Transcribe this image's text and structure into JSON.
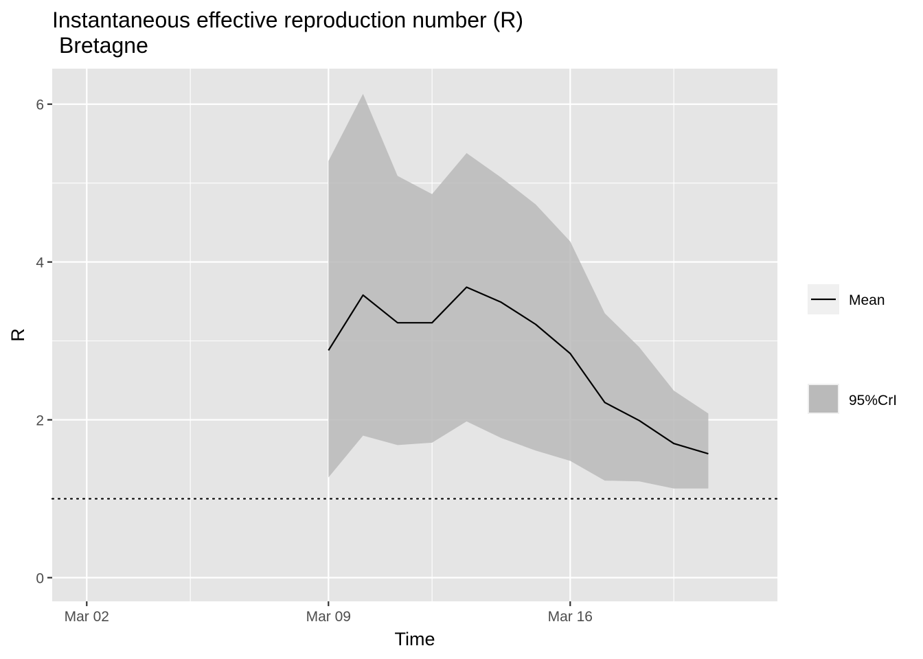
{
  "chart_data": {
    "type": "line",
    "title": "Instantaneous effective reproduction number (R)",
    "subtitle": "Bretagne",
    "xlabel": "Time",
    "ylabel": "R",
    "x_tick_labels": [
      "Mar 02",
      "Mar 09",
      "Mar 16"
    ],
    "y_tick_labels": [
      "0",
      "2",
      "4",
      "6"
    ],
    "ylim": [
      -0.3,
      6.45
    ],
    "xlim": [
      "2020-03-01",
      "2020-03-22"
    ],
    "x": [
      "2020-03-09",
      "2020-03-10",
      "2020-03-11",
      "2020-03-12",
      "2020-03-13",
      "2020-03-14",
      "2020-03-15",
      "2020-03-16",
      "2020-03-17",
      "2020-03-18",
      "2020-03-19",
      "2020-03-20"
    ],
    "series": [
      {
        "name": "Mean",
        "values": [
          2.88,
          3.58,
          3.23,
          3.23,
          3.68,
          3.49,
          3.21,
          2.84,
          2.22,
          1.99,
          1.7,
          1.57
        ]
      },
      {
        "name": "95%CrI",
        "lower": [
          1.27,
          1.8,
          1.68,
          1.71,
          1.98,
          1.77,
          1.61,
          1.48,
          1.23,
          1.22,
          1.13,
          1.13
        ],
        "upper": [
          5.28,
          6.13,
          5.09,
          4.86,
          5.38,
          5.07,
          4.73,
          4.26,
          3.35,
          2.92,
          2.37,
          2.08
        ]
      }
    ],
    "reference_line": {
      "y": 1,
      "style": "dotted"
    },
    "grid": true,
    "legend_position": "right",
    "colors": {
      "panel": "#e5e5e5",
      "grid": "#ffffff",
      "ribbon": "#bababa",
      "line": "#000000"
    }
  }
}
